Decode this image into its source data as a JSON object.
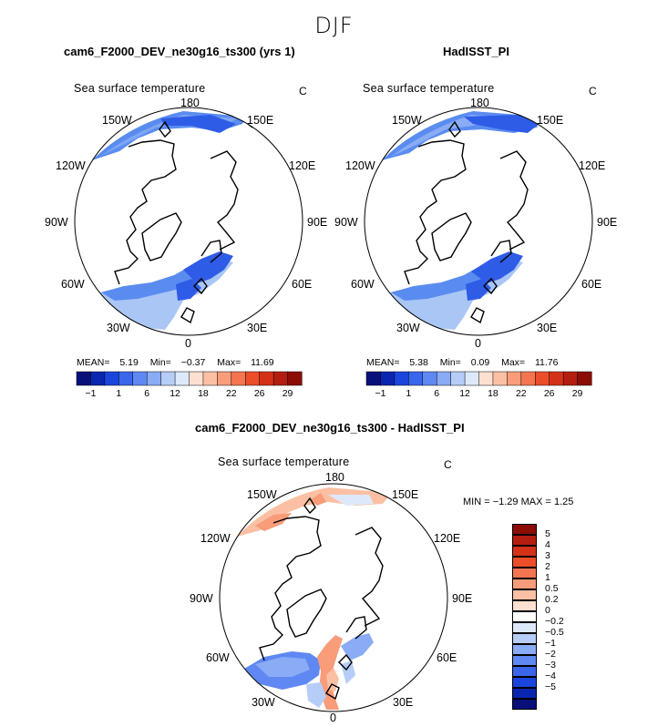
{
  "season": "DJF",
  "colors": {
    "ocean_deep": "#2e5ce6",
    "ocean_mid": "#5a8cf0",
    "ocean_light": "#a9c6f5",
    "ocean_pale": "#cfe0fa",
    "warm_light": "#f7c4ae",
    "warm_mid": "#f09a7c",
    "land_line": "#000000"
  },
  "panels": {
    "model": {
      "title": "cam6_F2000_DEV_ne30g16_ts300 (yrs 1)",
      "variable": "Sea surface temperature",
      "unit": "C",
      "stats": {
        "mean_label": "MEAN=",
        "mean": "5.19",
        "min_label": "Min=",
        "min": "−0.37",
        "max_label": "Max=",
        "max": "11.69"
      }
    },
    "obs": {
      "title": "HadISST_PI",
      "variable": "Sea surface temperature",
      "unit": "C",
      "stats": {
        "mean_label": "MEAN=",
        "mean": "5.38",
        "min_label": "Min=",
        "min": "0.09",
        "max_label": "Max=",
        "max": "11.76"
      }
    },
    "diff": {
      "title": "cam6_F2000_DEV_ne30g16_ts300 - HadISST_PI",
      "variable": "Sea surface temperature",
      "unit": "C",
      "minmax": "MIN =  −1.29  MAX =    1.25"
    }
  },
  "longitude_labels": {
    "top": "180",
    "tl": "150W",
    "tr": "150E",
    "ul": "120W",
    "ur": "120E",
    "l": "90W",
    "r": "90E",
    "ll": "60W",
    "lr": "60E",
    "bl": "30W",
    "br": "30E",
    "bottom": "0"
  },
  "abs_colorbar": {
    "colors": [
      "#08107a",
      "#0a26b0",
      "#1c45dd",
      "#3a66ec",
      "#5f88f2",
      "#8aabf5",
      "#b6cdf8",
      "#dde8fb",
      "#fde0d0",
      "#fbc0a4",
      "#f89c79",
      "#f47550",
      "#ec4e2a",
      "#d43218",
      "#b41e10",
      "#8c0c06"
    ],
    "labels": [
      "−1",
      "1",
      "6",
      "12",
      "18",
      "22",
      "26",
      "29"
    ]
  },
  "diff_colorbar": {
    "colors": [
      "#8c0c06",
      "#b41e10",
      "#d43218",
      "#ec4e2a",
      "#f47550",
      "#f89c79",
      "#fbc0a4",
      "#fde0d0",
      "#ffffff",
      "#dde8fb",
      "#b6cdf8",
      "#8aabf5",
      "#5f88f2",
      "#3a66ec",
      "#1c45dd",
      "#0a26b0",
      "#08107a"
    ],
    "labels": [
      "5",
      "4",
      "3",
      "2",
      "1",
      "0.5",
      "0.2",
      "0",
      "−0.2",
      "−0.5",
      "−1",
      "−2",
      "−3",
      "−4",
      "−5"
    ]
  }
}
